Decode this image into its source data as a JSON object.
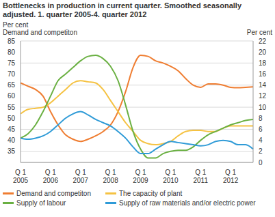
{
  "chart_data": {
    "type": "line",
    "title": "Bottlenecks in production in current quarter. Smoothed seasonally adjusted. 1. quarter 2005-4. quarter 2012",
    "y_label": "Per cent",
    "y_sublabel": "Demand and competiton",
    "y2_label": "Per cent",
    "categories": [
      "Q 1\n2005",
      null,
      null,
      null,
      "Q 1\n2006",
      null,
      null,
      null,
      "Q 1\n2007",
      null,
      null,
      null,
      "Q 1\n2008",
      null,
      null,
      null,
      "Q 1\n2009",
      null,
      null,
      null,
      "Q 1\n2010",
      null,
      null,
      null,
      "Q 1\n2011",
      null,
      null,
      null,
      "Q 1\n2012",
      null,
      null,
      null
    ],
    "ylim": [
      30,
      85
    ],
    "yticks": [
      35,
      40,
      45,
      50,
      55,
      60,
      65,
      70,
      75,
      80,
      85
    ],
    "y2lim": [
      0,
      22
    ],
    "y2ticks": [
      0,
      2,
      4,
      6,
      8,
      10,
      12,
      14,
      16,
      18,
      20,
      22
    ],
    "grid": true,
    "legend": "bottom",
    "series": [
      {
        "name": "Demand and competiton",
        "color": "#ef7d31",
        "values": [
          66,
          64.5,
          63,
          60,
          53,
          47,
          42.5,
          40.5,
          39.5,
          40.5,
          42,
          44,
          47,
          53,
          62,
          73,
          78.5,
          78,
          76,
          75,
          73.5,
          71.5,
          68,
          65,
          64,
          65.5,
          65.5,
          65,
          64,
          63.8,
          64,
          64.2
        ]
      },
      {
        "name": "The capacity of plant",
        "color": "#f5c242",
        "axis": "y2",
        "values": [
          8.8,
          9.6,
          9.8,
          10,
          10.8,
          12,
          13.2,
          14.4,
          14.8,
          14.6,
          14.4,
          13.2,
          11.2,
          9.2,
          7.2,
          5.6,
          4,
          3.4,
          3.2,
          3.4,
          3.8,
          4.8,
          5.6,
          5.8,
          5.8,
          5.6,
          5.6,
          6.2,
          6.6,
          6.6,
          6.6,
          6.6
        ]
      },
      {
        "name": "Supply of labour",
        "color": "#6ab042",
        "axis": "y2",
        "values": [
          4.4,
          5.2,
          6.8,
          9.2,
          12,
          14.8,
          16,
          17.2,
          18.4,
          19.2,
          19.4,
          18.8,
          17.4,
          14.8,
          10.4,
          5.6,
          2.4,
          0.8,
          0.8,
          1.6,
          2,
          2.2,
          2.2,
          2.8,
          4,
          5,
          5.6,
          6.2,
          6.8,
          7.2,
          7.6,
          7.8
        ]
      },
      {
        "name": "Supply of raw materials and/or electric power",
        "color": "#2f9bd7",
        "axis": "y2",
        "values": [
          4.4,
          4.2,
          4.4,
          4.8,
          5.6,
          6.8,
          8,
          8.8,
          9.2,
          8.6,
          7.8,
          7.2,
          6.6,
          5.6,
          4.4,
          2.8,
          1.6,
          1.6,
          2.4,
          3.2,
          3.8,
          3.6,
          3.4,
          3.2,
          3,
          3.2,
          3.8,
          4,
          3.8,
          3.2,
          3.2,
          2.4
        ]
      }
    ]
  }
}
